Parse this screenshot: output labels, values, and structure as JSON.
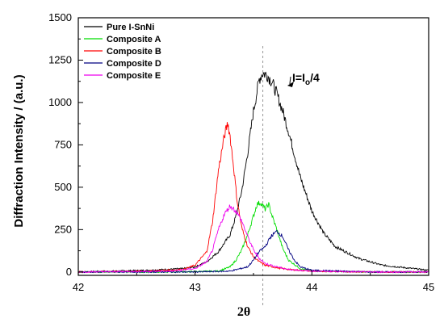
{
  "chart_data": {
    "type": "line",
    "title": "",
    "xlabel": "2θ",
    "ylabel": "Diffraction Intensity / (a.u.)",
    "xlim": [
      42,
      45
    ],
    "ylim": [
      -20,
      1500
    ],
    "xticks": [
      "42",
      "43",
      "44",
      "45"
    ],
    "yticks": [
      "0",
      "250",
      "500",
      "750",
      "1000",
      "1250",
      "1500"
    ],
    "grid": false,
    "legend_position": "top-left",
    "annotation": {
      "text_main": "I=I",
      "text_sub": "o",
      "text_tail": "/4",
      "arrow_to": {
        "x": 43.79,
        "y": 1100
      }
    },
    "reference_line_x": 43.58,
    "series": [
      {
        "name": "Pure I-SnNi",
        "color": "#000000",
        "x": [
          42.0,
          42.3,
          42.6,
          42.9,
          43.0,
          43.1,
          43.2,
          43.3,
          43.35,
          43.4,
          43.45,
          43.5,
          43.55,
          43.58,
          43.62,
          43.66,
          43.7,
          43.75,
          43.8,
          43.9,
          44.0,
          44.1,
          44.2,
          44.4,
          44.6,
          45.0
        ],
        "y": [
          0,
          5,
          10,
          20,
          30,
          60,
          120,
          220,
          330,
          480,
          700,
          950,
          1140,
          1175,
          1160,
          1120,
          1050,
          950,
          830,
          560,
          360,
          230,
          150,
          80,
          40,
          10
        ]
      },
      {
        "name": "Composite A",
        "color": "#00dd00",
        "x": [
          42.0,
          42.8,
          43.2,
          43.3,
          43.35,
          43.4,
          43.45,
          43.5,
          43.53,
          43.56,
          43.6,
          43.63,
          43.66,
          43.7,
          43.75,
          43.8,
          43.9,
          44.0,
          44.5,
          45.0
        ],
        "y": [
          0,
          0,
          5,
          30,
          70,
          130,
          220,
          330,
          400,
          410,
          370,
          400,
          330,
          250,
          140,
          70,
          20,
          5,
          0,
          0
        ]
      },
      {
        "name": "Composite B",
        "color": "#ff0000",
        "x": [
          42.0,
          42.6,
          42.9,
          43.0,
          43.1,
          43.15,
          43.2,
          43.25,
          43.28,
          43.3,
          43.33,
          43.36,
          43.4,
          43.45,
          43.5,
          43.55,
          43.6,
          43.7,
          43.8,
          44.0,
          44.5,
          45.0
        ],
        "y": [
          0,
          5,
          15,
          40,
          120,
          300,
          600,
          800,
          880,
          800,
          620,
          420,
          260,
          150,
          90,
          60,
          40,
          25,
          15,
          5,
          0,
          0
        ]
      },
      {
        "name": "Composite D",
        "color": "#000080",
        "x": [
          42.0,
          43.0,
          43.3,
          43.45,
          43.5,
          43.55,
          43.6,
          43.65,
          43.7,
          43.75,
          43.8,
          43.85,
          43.9,
          44.0,
          44.5,
          45.0
        ],
        "y": [
          0,
          0,
          5,
          30,
          70,
          120,
          150,
          210,
          240,
          210,
          130,
          70,
          30,
          10,
          0,
          0
        ]
      },
      {
        "name": "Composite E",
        "color": "#ee00ee",
        "x": [
          42.0,
          42.8,
          43.0,
          43.1,
          43.15,
          43.2,
          43.25,
          43.3,
          43.35,
          43.4,
          43.45,
          43.5,
          43.55,
          43.6,
          43.7,
          43.8,
          44.0,
          44.5,
          45.0
        ],
        "y": [
          0,
          5,
          20,
          60,
          130,
          250,
          340,
          390,
          360,
          300,
          210,
          130,
          80,
          50,
          30,
          15,
          5,
          0,
          0
        ]
      }
    ]
  }
}
